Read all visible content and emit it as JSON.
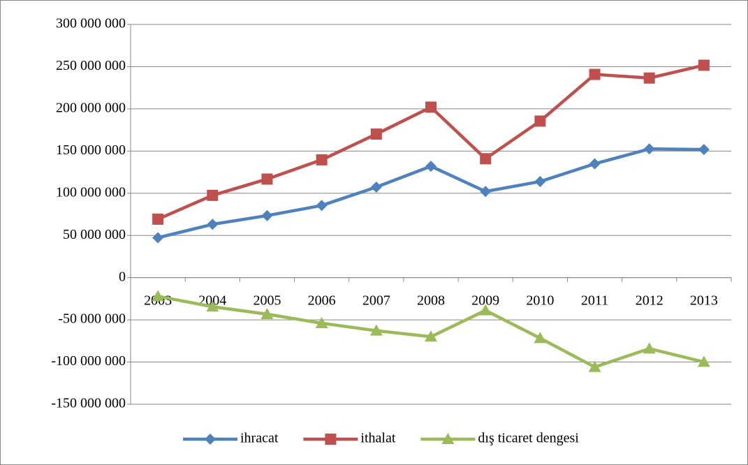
{
  "chart_data": {
    "type": "line",
    "categories": [
      "2003",
      "2004",
      "2005",
      "2006",
      "2007",
      "2008",
      "2009",
      "2010",
      "2011",
      "2012",
      "2013"
    ],
    "series": [
      {
        "name": "ihracat",
        "color": "#4f81bd",
        "marker": "diamond",
        "values": [
          47300000,
          63200000,
          73500000,
          85500000,
          107300000,
          132000000,
          102100000,
          113900000,
          134900000,
          152500000,
          151800000
        ]
      },
      {
        "name": "ithalat",
        "color": "#c0504d",
        "marker": "square",
        "values": [
          69300000,
          97500000,
          116800000,
          139600000,
          170100000,
          202000000,
          140900000,
          185500000,
          240800000,
          236500000,
          251700000
        ]
      },
      {
        "name": "dış ticaret dengesi",
        "color": "#9bbb59",
        "marker": "triangle",
        "values": [
          -22100000,
          -34400000,
          -43300000,
          -54000000,
          -62800000,
          -70000000,
          -38800000,
          -71700000,
          -105900000,
          -84100000,
          -99900000
        ]
      }
    ],
    "ylim": [
      -150000000,
      300000000
    ],
    "yticks": [
      {
        "value": -150000000,
        "label": "-150 000 000"
      },
      {
        "value": -100000000,
        "label": "-100 000 000"
      },
      {
        "value": -50000000,
        "label": "-50 000 000"
      },
      0,
      {
        "value": 50000000,
        "label": "50 000 000"
      },
      {
        "value": 100000000,
        "label": "100 000 000"
      },
      {
        "value": 150000000,
        "label": "150 000 000"
      },
      {
        "value": 200000000,
        "label": "200 000 000"
      },
      {
        "value": 250000000,
        "label": "250 000 000"
      },
      {
        "value": 300000000,
        "label": "300 000 000"
      }
    ],
    "grid": true,
    "legend": "bottom"
  }
}
